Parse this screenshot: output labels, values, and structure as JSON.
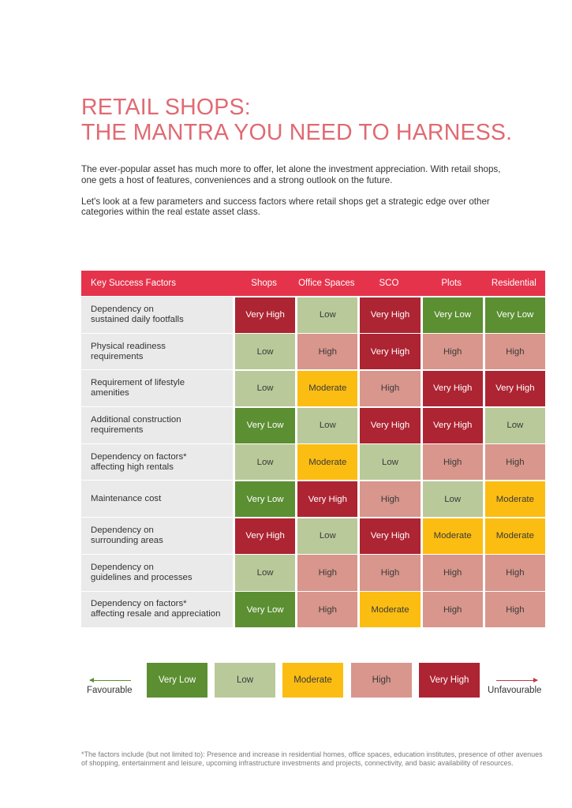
{
  "title": {
    "line1": "RETAIL SHOPS:",
    "line2": "THE MANTRA YOU NEED TO HARNESS."
  },
  "intro": {
    "p1": "The ever-popular asset has much more to offer, let alone the investment appreciation. With retail shops, one gets a host of features, conveniences and a strong outlook on the future.",
    "p2": "Let's look at a few parameters and success factors where retail shops get a strategic edge over other categories within the real estate asset class."
  },
  "table": {
    "headers": [
      "Key Success Factors",
      "Shops",
      "Office Spaces",
      "SCO",
      "Plots",
      "Residential"
    ],
    "header_color": "#e5334b",
    "rows": [
      {
        "factor_line1": "Dependency on",
        "factor_line2": "sustained daily footfalls",
        "values": [
          "Very High",
          "Low",
          "Very High",
          "Very Low",
          "Very Low"
        ]
      },
      {
        "factor_line1": "Physical readiness",
        "factor_line2": "requirements",
        "values": [
          "Low",
          "High",
          "Very High",
          "High",
          "High"
        ]
      },
      {
        "factor_line1": "Requirement of lifestyle",
        "factor_line2": "amenities",
        "values": [
          "Low",
          "Moderate",
          "High",
          "Very High",
          "Very High"
        ]
      },
      {
        "factor_line1": "Additional construction",
        "factor_line2": "requirements",
        "values": [
          "Very Low",
          "Low",
          "Very High",
          "Very High",
          "Low"
        ]
      },
      {
        "factor_line1": "Dependency on factors*",
        "factor_line2": "affecting high rentals",
        "values": [
          "Low",
          "Moderate",
          "Low",
          "High",
          "High"
        ]
      },
      {
        "factor_line1": "Maintenance cost",
        "factor_line2": "",
        "values": [
          "Very Low",
          "Very High",
          "High",
          "Low",
          "Moderate"
        ]
      },
      {
        "factor_line1": "Dependency on",
        "factor_line2": "surrounding areas",
        "values": [
          "Very High",
          "Low",
          "Very High",
          "Moderate",
          "Moderate"
        ]
      },
      {
        "factor_line1": "Dependency on",
        "factor_line2": "guidelines and processes",
        "values": [
          "Low",
          "High",
          "High",
          "High",
          "High"
        ]
      },
      {
        "factor_line1": "Dependency on factors*",
        "factor_line2": "affecting resale and appreciation",
        "values": [
          "Very Low",
          "High",
          "Moderate",
          "High",
          "High"
        ]
      }
    ]
  },
  "legend": {
    "favourable": "Favourable",
    "unfavourable": "Unfavourable",
    "levels": [
      {
        "label": "Very Low",
        "color": "#5b8f32"
      },
      {
        "label": "Low",
        "color": "#b9c99a"
      },
      {
        "label": "Moderate",
        "color": "#fbbd12"
      },
      {
        "label": "High",
        "color": "#d8968c"
      },
      {
        "label": "Very High",
        "color": "#ad2432"
      }
    ]
  },
  "footnote": "*The factors include (but not limited to): Presence and increase in residential homes, office spaces, education institutes, presence of other avenues of shopping, entertainment and leisure, upcoming infrastructure investments and projects, connectivity, and basic availability of resources."
}
